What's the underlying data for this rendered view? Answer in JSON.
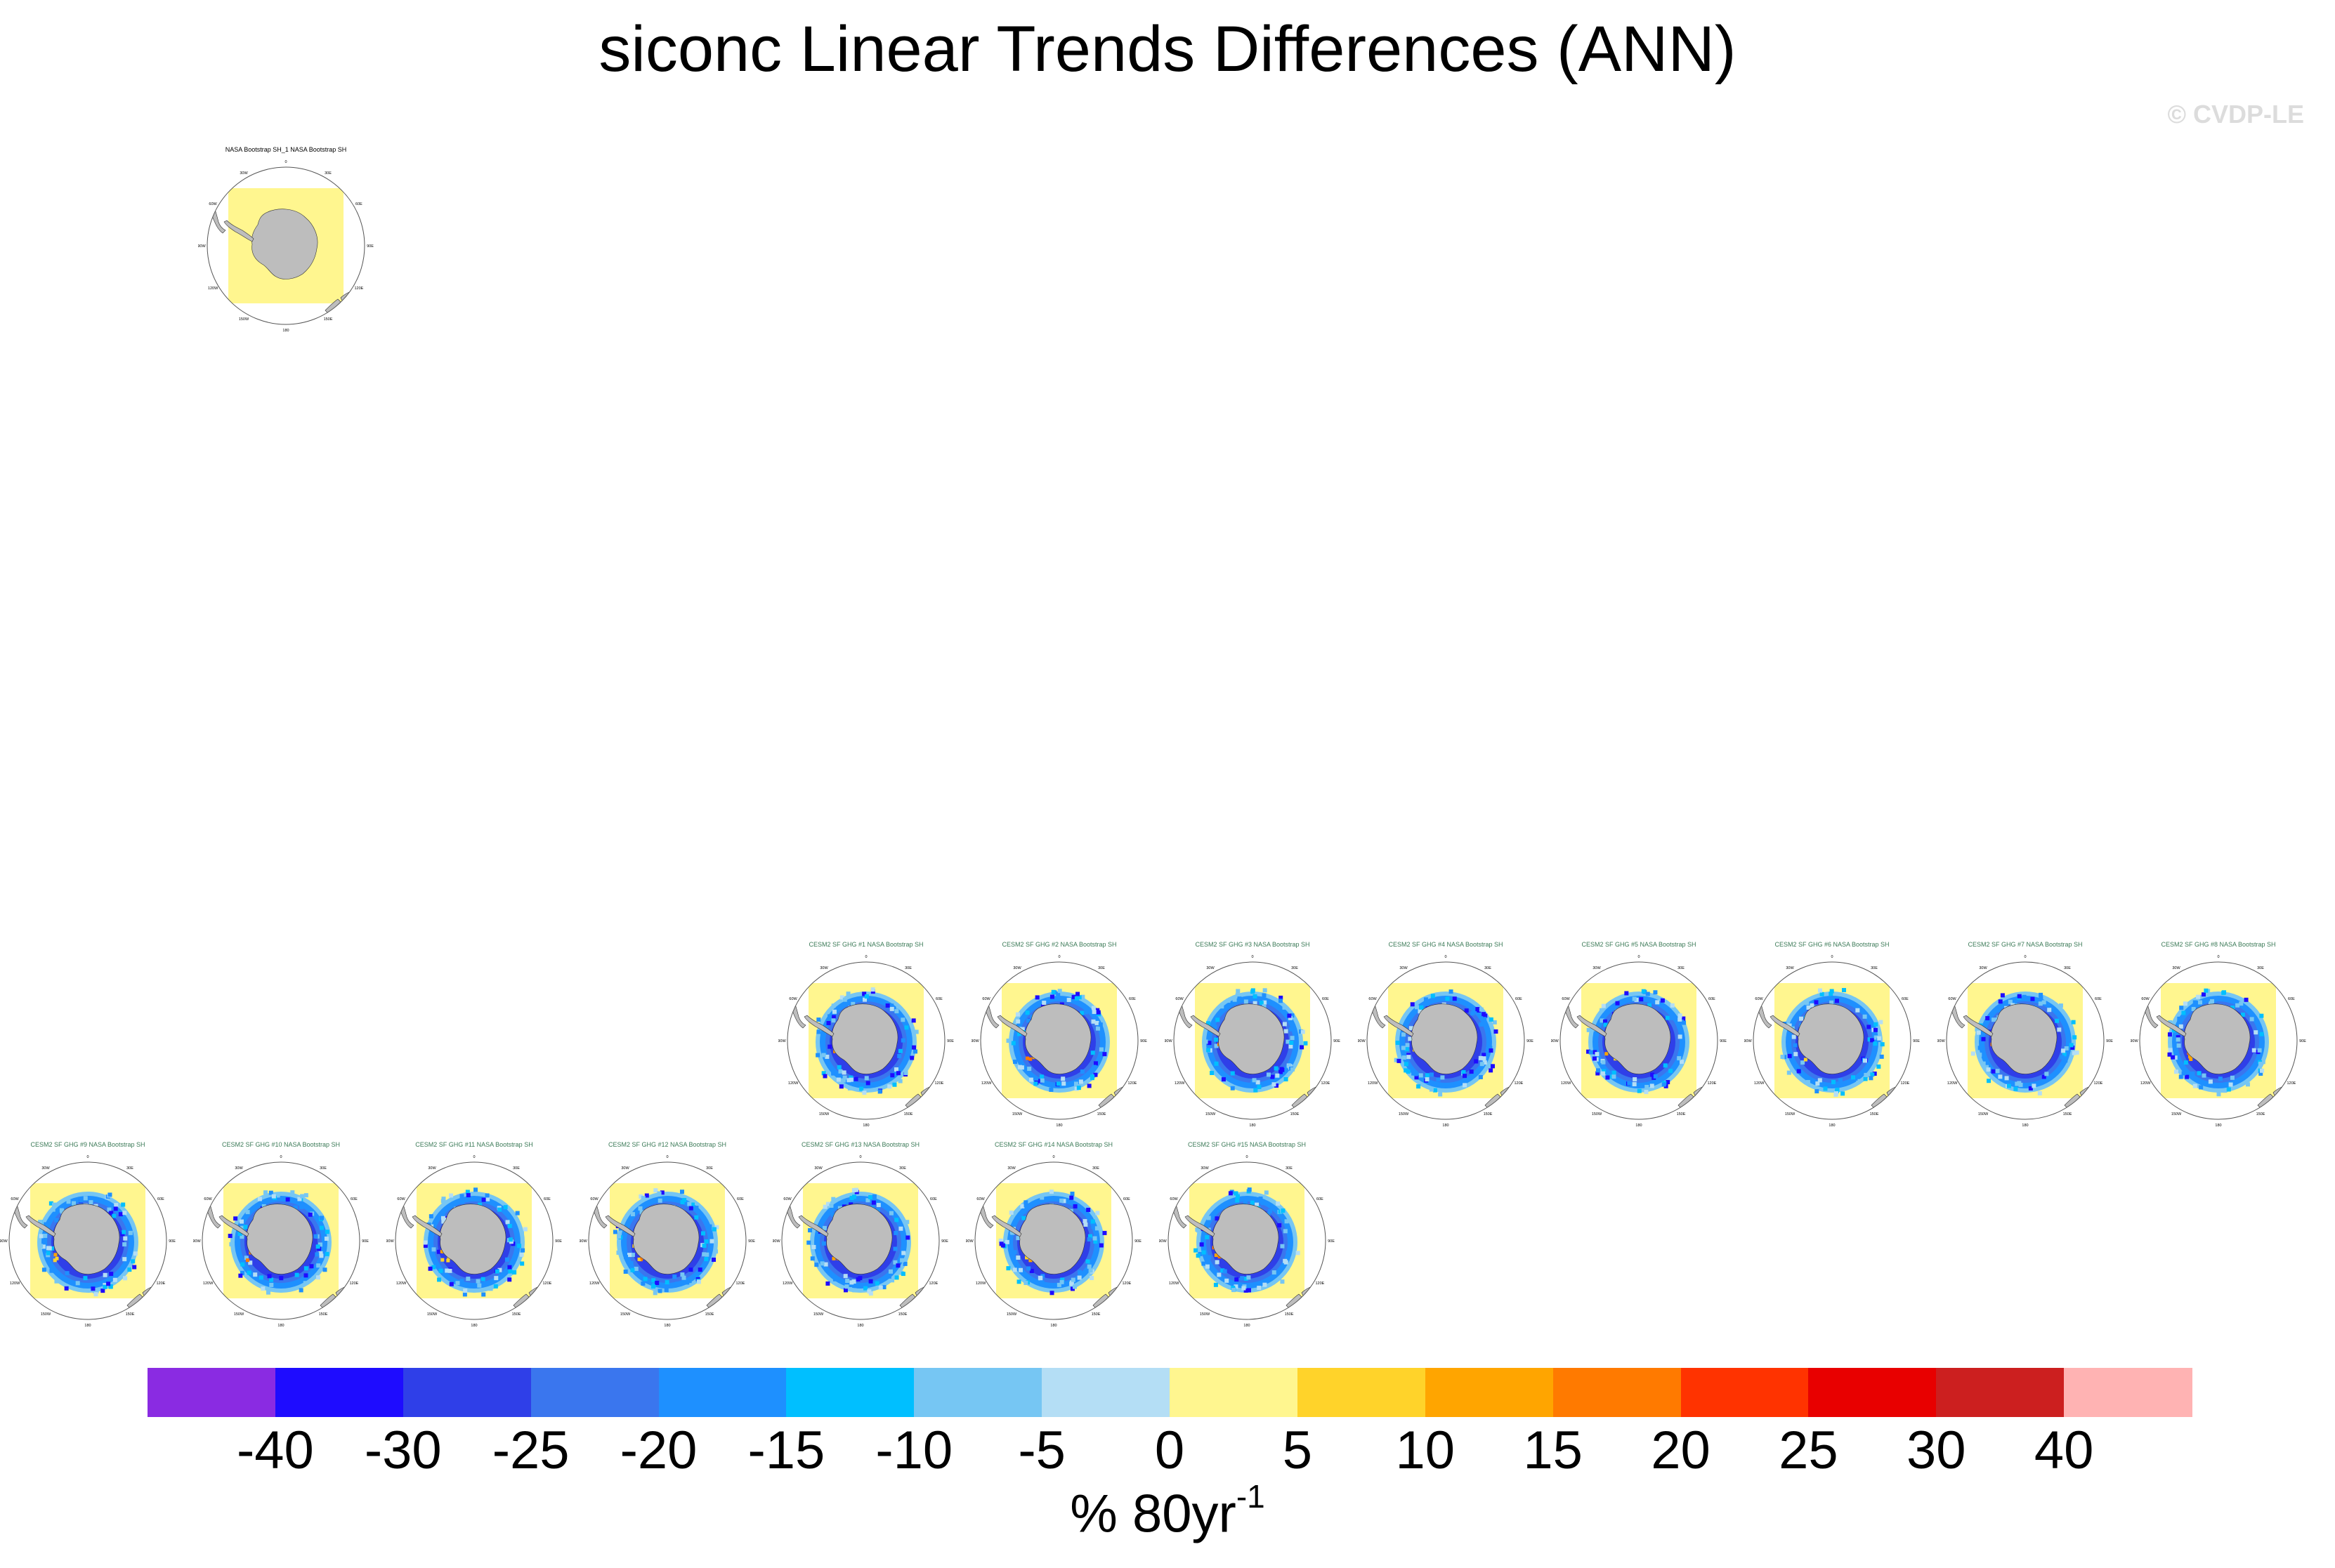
{
  "title": "siconc Linear Trends Differences (ANN)",
  "watermark": "© CVDP-LE",
  "chart_data": {
    "type": "heatmap",
    "title": "siconc Linear Trends Differences (ANN)",
    "projection": "south polar stereographic",
    "panels": [
      {
        "title": "NASA Bootstrap SH_1 NASA Bootstrap SH",
        "kind": "obs"
      },
      {
        "title": "CESM2 SF GHG #1 NASA Bootstrap SH",
        "kind": "model"
      },
      {
        "title": "CESM2 SF GHG #2 NASA Bootstrap SH",
        "kind": "model"
      },
      {
        "title": "CESM2 SF GHG #3 NASA Bootstrap SH",
        "kind": "model"
      },
      {
        "title": "CESM2 SF GHG #4 NASA Bootstrap SH",
        "kind": "model"
      },
      {
        "title": "CESM2 SF GHG #5 NASA Bootstrap SH",
        "kind": "model"
      },
      {
        "title": "CESM2 SF GHG #6 NASA Bootstrap SH",
        "kind": "model"
      },
      {
        "title": "CESM2 SF GHG #7 NASA Bootstrap SH",
        "kind": "model"
      },
      {
        "title": "CESM2 SF GHG #8 NASA Bootstrap SH",
        "kind": "model"
      },
      {
        "title": "CESM2 SF GHG #9 NASA Bootstrap SH",
        "kind": "model"
      },
      {
        "title": "CESM2 SF GHG #10 NASA Bootstrap SH",
        "kind": "model"
      },
      {
        "title": "CESM2 SF GHG #11 NASA Bootstrap SH",
        "kind": "model"
      },
      {
        "title": "CESM2 SF GHG #12 NASA Bootstrap SH",
        "kind": "model"
      },
      {
        "title": "CESM2 SF GHG #13 NASA Bootstrap SH",
        "kind": "model"
      },
      {
        "title": "CESM2 SF GHG #14 NASA Bootstrap SH",
        "kind": "model"
      },
      {
        "title": "CESM2 SF GHG #15 NASA Bootstrap SH",
        "kind": "model"
      }
    ],
    "map_labels": [
      "0",
      "30E",
      "60E",
      "90E",
      "120E",
      "150E",
      "180",
      "150W",
      "120W",
      "90W",
      "60W",
      "30W"
    ],
    "colorbar": {
      "units": "% 80yr",
      "units_exponent": "-1",
      "levels": [
        "-40",
        "-30",
        "-25",
        "-20",
        "-15",
        "-10",
        "-5",
        "0",
        "5",
        "10",
        "15",
        "20",
        "25",
        "30",
        "40"
      ],
      "colors": [
        "#8a2be2",
        "#1e0cff",
        "#2f3fe8",
        "#3a76ee",
        "#1e90ff",
        "#00bfff",
        "#76c6f3",
        "#b4def5",
        "#fff68f",
        "#ffd32a",
        "#ffa500",
        "#ff7a00",
        "#ff3300",
        "#e80000",
        "#cc1f1f",
        "#ffb3b3"
      ]
    }
  }
}
